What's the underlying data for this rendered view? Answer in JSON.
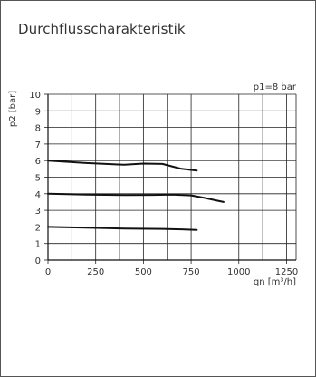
{
  "title": "Durchflusscharakteristik",
  "chart_data": {
    "type": "line",
    "title": "Durchflusscharakteristik",
    "annotation": "p1=8 bar",
    "xlabel": "qn [m³/h]",
    "ylabel": "p2 [bar]",
    "xlim": [
      0,
      1300
    ],
    "ylim": [
      0,
      10
    ],
    "grid": true,
    "x_ticks": [
      "0",
      "250",
      "500",
      "750",
      "1000",
      "1250"
    ],
    "y_ticks": [
      "0",
      "1",
      "2",
      "3",
      "4",
      "5",
      "6",
      "7",
      "8",
      "9",
      "10"
    ],
    "series": [
      {
        "x": [
          0,
          200,
          400,
          500,
          600,
          650,
          700,
          780
        ],
        "y": [
          6.0,
          5.85,
          5.75,
          5.82,
          5.8,
          5.65,
          5.5,
          5.4
        ]
      },
      {
        "x": [
          0,
          200,
          400,
          550,
          650,
          750,
          820,
          880,
          920
        ],
        "y": [
          4.0,
          3.95,
          3.92,
          3.93,
          3.95,
          3.9,
          3.75,
          3.6,
          3.5
        ]
      },
      {
        "x": [
          0,
          200,
          400,
          600,
          700,
          780
        ],
        "y": [
          2.0,
          1.95,
          1.9,
          1.88,
          1.85,
          1.82
        ]
      }
    ]
  }
}
